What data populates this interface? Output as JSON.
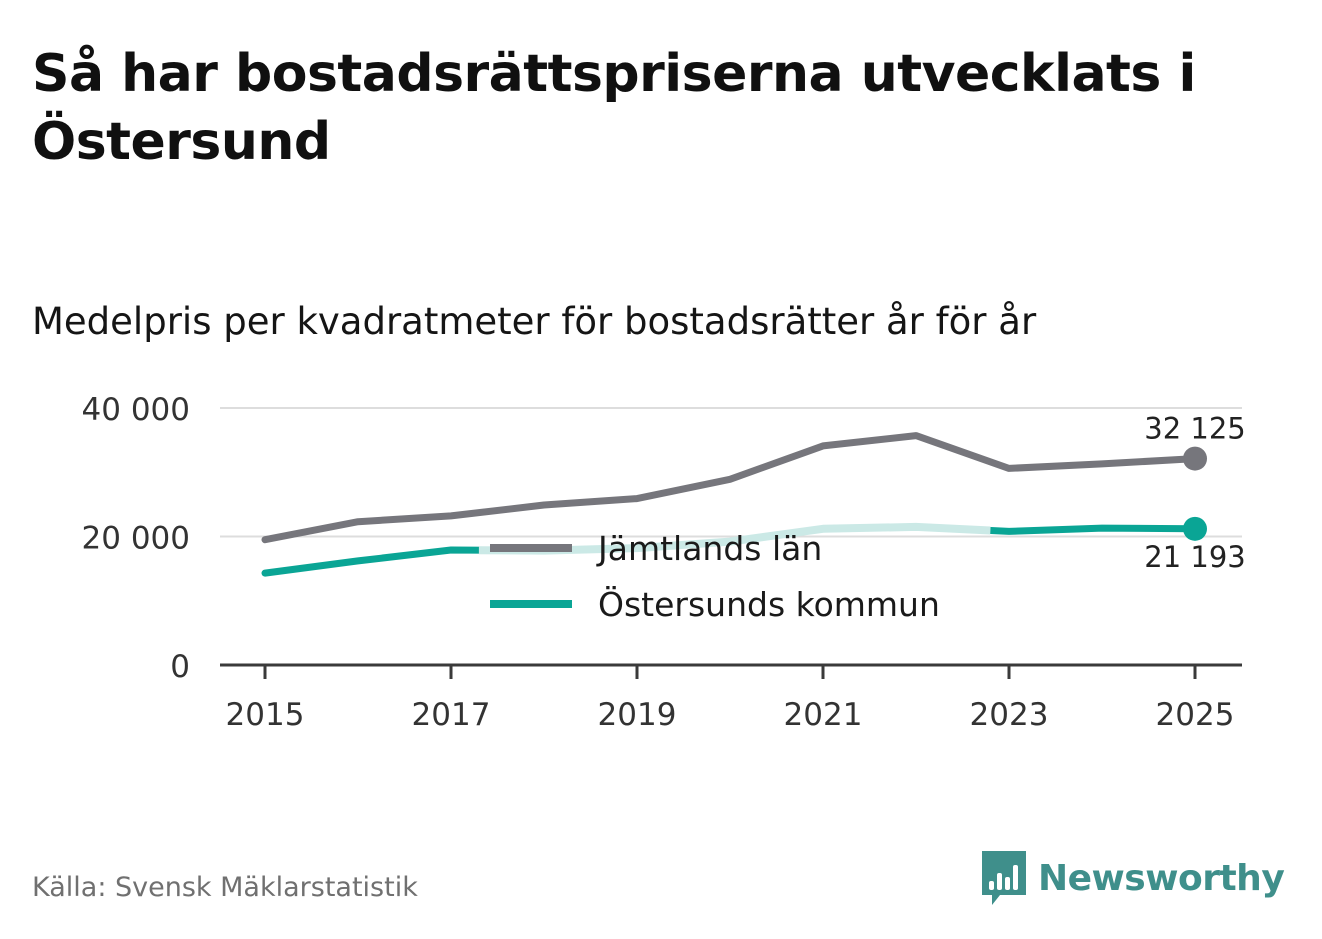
{
  "title": "Så har bostadsrättspriserna utvecklats i Östersund",
  "subtitle": "Medelpris per kvadratmeter för bostadsrätter år för år",
  "source": "Källa: Svensk Mäklarstatistik",
  "brand": "Newsworthy",
  "colors": {
    "county": "#76767c",
    "municipality": "#0aa595",
    "municipality_faded": "#cbe9e6",
    "grid": "#dddddd",
    "axis": "#3a3a3a",
    "text": "#333333",
    "brand": "#3f8f8b"
  },
  "chart_data": {
    "type": "line",
    "title": "Medelpris per kvadratmeter för bostadsrätter år för år",
    "xlabel": "",
    "ylabel": "",
    "x": [
      2015,
      2016,
      2017,
      2018,
      2019,
      2020,
      2021,
      2022,
      2023,
      2024,
      2025
    ],
    "xticks": [
      "2015",
      "2017",
      "2019",
      "2021",
      "2023",
      "2025"
    ],
    "ylim": [
      0,
      40000
    ],
    "yticks": [
      {
        "value": 0,
        "label": "0"
      },
      {
        "value": 20000,
        "label": "20 000"
      },
      {
        "value": 40000,
        "label": "40 000"
      }
    ],
    "series": [
      {
        "name": "Jämtlands län",
        "key": "county",
        "values": [
          19500,
          22300,
          23200,
          24900,
          25900,
          28900,
          34100,
          35700,
          30600,
          31300,
          32125
        ],
        "end_label": "32 125"
      },
      {
        "name": "Östersunds kommun",
        "key": "municipality",
        "values": [
          14300,
          16200,
          17900,
          17800,
          18200,
          19200,
          21200,
          21500,
          20800,
          21300,
          21193
        ],
        "end_label": "21 193"
      }
    ],
    "legend": [
      "Jämtlands län",
      "Östersunds kommun"
    ],
    "legend_position": "center"
  }
}
